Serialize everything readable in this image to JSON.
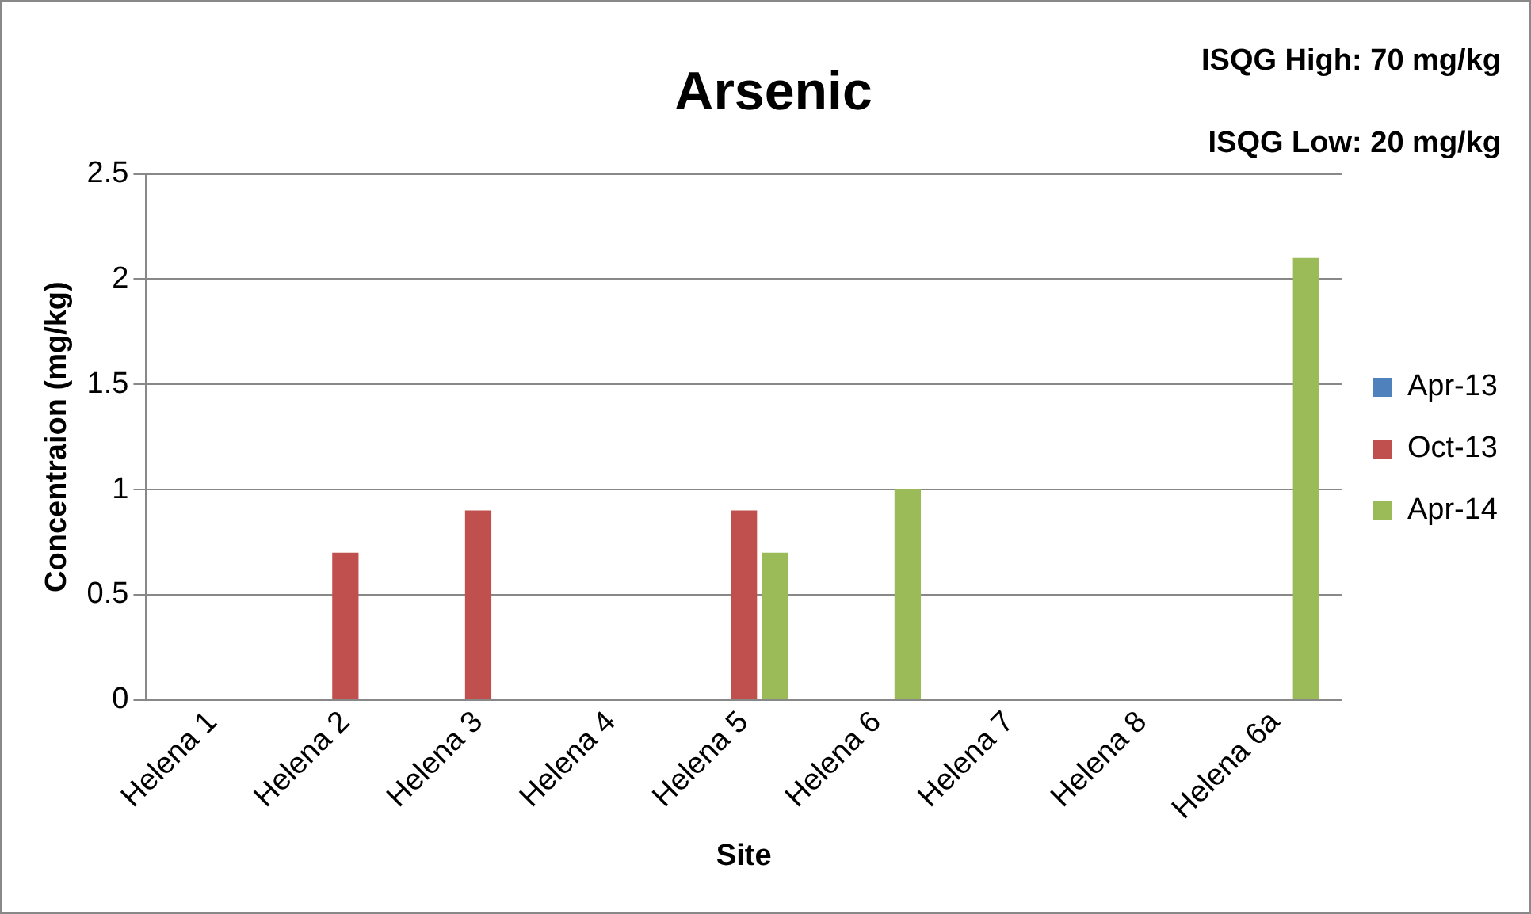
{
  "chart_data": {
    "type": "bar",
    "title": "Arsenic",
    "xlabel": "Site",
    "ylabel": "Concentraion (mg/kg)",
    "categories": [
      "Helena 1",
      "Helena 2",
      "Helena 3",
      "Helena 4",
      "Helena 5",
      "Helena 6",
      "Helena 7",
      "Helena 8",
      "Helena 6a"
    ],
    "series": [
      {
        "name": "Apr-13",
        "color": "#4f81bd",
        "values": [
          null,
          null,
          null,
          null,
          null,
          null,
          null,
          null,
          null
        ]
      },
      {
        "name": "Oct-13",
        "color": "#c0504d",
        "values": [
          null,
          0.7,
          0.9,
          null,
          0.9,
          null,
          null,
          null,
          null
        ]
      },
      {
        "name": "Apr-14",
        "color": "#9bbb59",
        "values": [
          null,
          null,
          null,
          null,
          0.7,
          1.0,
          null,
          null,
          2.1
        ]
      }
    ],
    "ylim": [
      0,
      2.5
    ],
    "yticks": [
      0,
      0.5,
      1,
      1.5,
      2,
      2.5
    ],
    "grid": "y",
    "legend": "right",
    "annotations": [
      "ISQG High: 70 mg/kg",
      "ISQG Low: 20 mg/kg"
    ]
  }
}
